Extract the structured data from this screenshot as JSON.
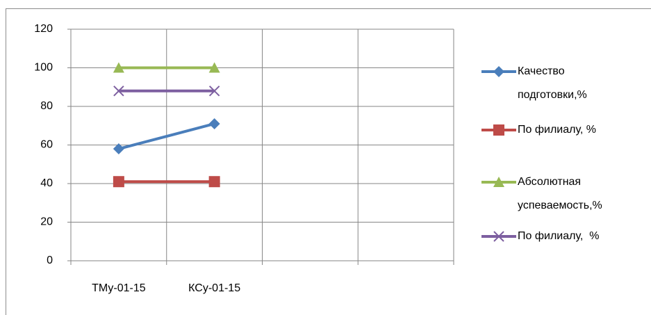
{
  "chart_data": {
    "type": "line",
    "categories": [
      "ТМу-01-15",
      "КСу-01-15",
      null,
      null
    ],
    "series": [
      {
        "name": "Качество подготовки,%",
        "color": "#4a7ebb",
        "marker": "diamond",
        "values": [
          58,
          71,
          null,
          null
        ]
      },
      {
        "name": "По филиалу, %",
        "color": "#be4b48",
        "marker": "square",
        "values": [
          41,
          41,
          null,
          null
        ]
      },
      {
        "name": "Абсолютная успеваемость,%",
        "color": "#98b954",
        "marker": "triangle",
        "values": [
          100,
          100,
          null,
          null
        ]
      },
      {
        "name": "По филиалу,  %",
        "color": "#7d5fa0",
        "marker": "x",
        "values": [
          88,
          88,
          null,
          null
        ]
      }
    ],
    "ylim": [
      0,
      120
    ],
    "yticks": [
      0,
      20,
      40,
      60,
      80,
      100,
      120
    ],
    "grid": true,
    "legend": "right"
  }
}
